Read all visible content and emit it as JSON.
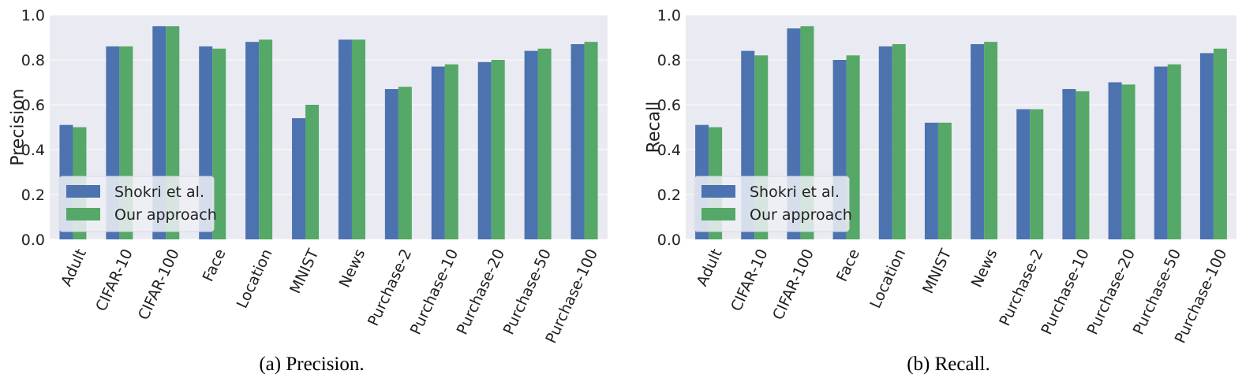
{
  "colors": {
    "series_a": "#4c72b0",
    "series_b": "#55a868",
    "background": "#eaeaf2",
    "grid": "#ffffff"
  },
  "chart_data": [
    {
      "type": "bar",
      "caption": "(a) Precision.",
      "xlabel": "",
      "ylabel": "Precision",
      "ylim": [
        0,
        1.0
      ],
      "yticks": [
        "0.0",
        "0.2",
        "0.4",
        "0.6",
        "0.8",
        "1.0"
      ],
      "grid": true,
      "legend": "lower-left",
      "categories": [
        "Adult",
        "CIFAR-10",
        "CIFAR-100",
        "Face",
        "Location",
        "MNIST",
        "News",
        "Purchase-2",
        "Purchase-10",
        "Purchase-20",
        "Purchase-50",
        "Purchase-100"
      ],
      "series": [
        {
          "name": "Shokri et al.",
          "values": [
            0.51,
            0.86,
            0.95,
            0.86,
            0.88,
            0.54,
            0.89,
            0.67,
            0.77,
            0.79,
            0.84,
            0.87
          ]
        },
        {
          "name": "Our approach",
          "values": [
            0.5,
            0.86,
            0.95,
            0.85,
            0.89,
            0.6,
            0.89,
            0.68,
            0.78,
            0.8,
            0.85,
            0.88
          ]
        }
      ]
    },
    {
      "type": "bar",
      "caption": "(b) Recall.",
      "xlabel": "",
      "ylabel": "Recall",
      "ylim": [
        0,
        1.0
      ],
      "yticks": [
        "0.0",
        "0.2",
        "0.4",
        "0.6",
        "0.8",
        "1.0"
      ],
      "grid": true,
      "legend": "lower-left",
      "categories": [
        "Adult",
        "CIFAR-10",
        "CIFAR-100",
        "Face",
        "Location",
        "MNIST",
        "News",
        "Purchase-2",
        "Purchase-10",
        "Purchase-20",
        "Purchase-50",
        "Purchase-100"
      ],
      "series": [
        {
          "name": "Shokri et al.",
          "values": [
            0.51,
            0.84,
            0.94,
            0.8,
            0.86,
            0.52,
            0.87,
            0.58,
            0.67,
            0.7,
            0.77,
            0.83
          ]
        },
        {
          "name": "Our approach",
          "values": [
            0.5,
            0.82,
            0.95,
            0.82,
            0.87,
            0.52,
            0.88,
            0.58,
            0.66,
            0.69,
            0.78,
            0.85
          ]
        }
      ]
    }
  ]
}
